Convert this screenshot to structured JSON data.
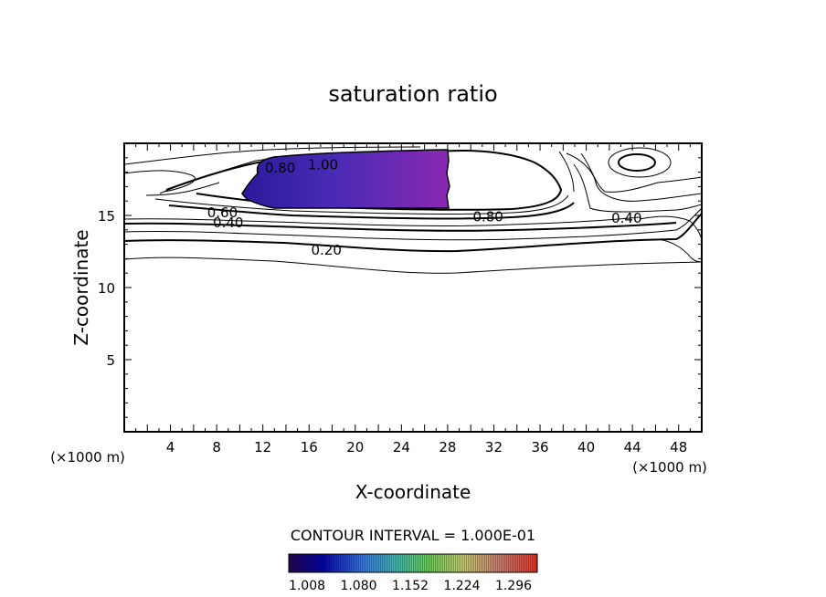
{
  "chart_data": {
    "type": "contour",
    "title": "saturation ratio",
    "xlabel": "X-coordinate",
    "ylabel": "Z-coordinate",
    "x_unit": "(×1000 m)",
    "x_unit_right": "(×1000 m)",
    "xlim": [
      0,
      50
    ],
    "ylim": [
      0,
      20
    ],
    "x_ticks": [
      4,
      8,
      12,
      16,
      20,
      24,
      28,
      32,
      36,
      40,
      44,
      48
    ],
    "y_ticks": [
      5,
      10,
      15
    ],
    "contour_interval_text": "CONTOUR INTERVAL = 1.000E-01",
    "contour_labels": [
      {
        "text": "0.20",
        "x": 17.5,
        "z": 12.6
      },
      {
        "text": "0.40",
        "x": 9.0,
        "z": 14.5
      },
      {
        "text": "0.60",
        "x": 8.5,
        "z": 15.2
      },
      {
        "text": "0.80",
        "x": 31.5,
        "z": 14.9
      },
      {
        "text": "0.40",
        "x": 43.5,
        "z": 14.8
      },
      {
        "text": "0.80",
        "x": 13.5,
        "z": 18.3
      },
      {
        "text": "1.00",
        "x": 17.2,
        "z": 18.5
      }
    ],
    "shaded_region": {
      "threshold": 1.0,
      "x_range": [
        10.3,
        28.0
      ],
      "z_range": [
        15.4,
        19.1
      ]
    },
    "colorbar": {
      "labels": [
        "1.008",
        "1.080",
        "1.152",
        "1.224",
        "1.296"
      ],
      "colors": [
        "#2a0060",
        "#0000cc",
        "#2e7cff",
        "#34c6b4",
        "#5ed84a",
        "#c8d060",
        "#d97a6a",
        "#ff2a1a"
      ]
    }
  }
}
